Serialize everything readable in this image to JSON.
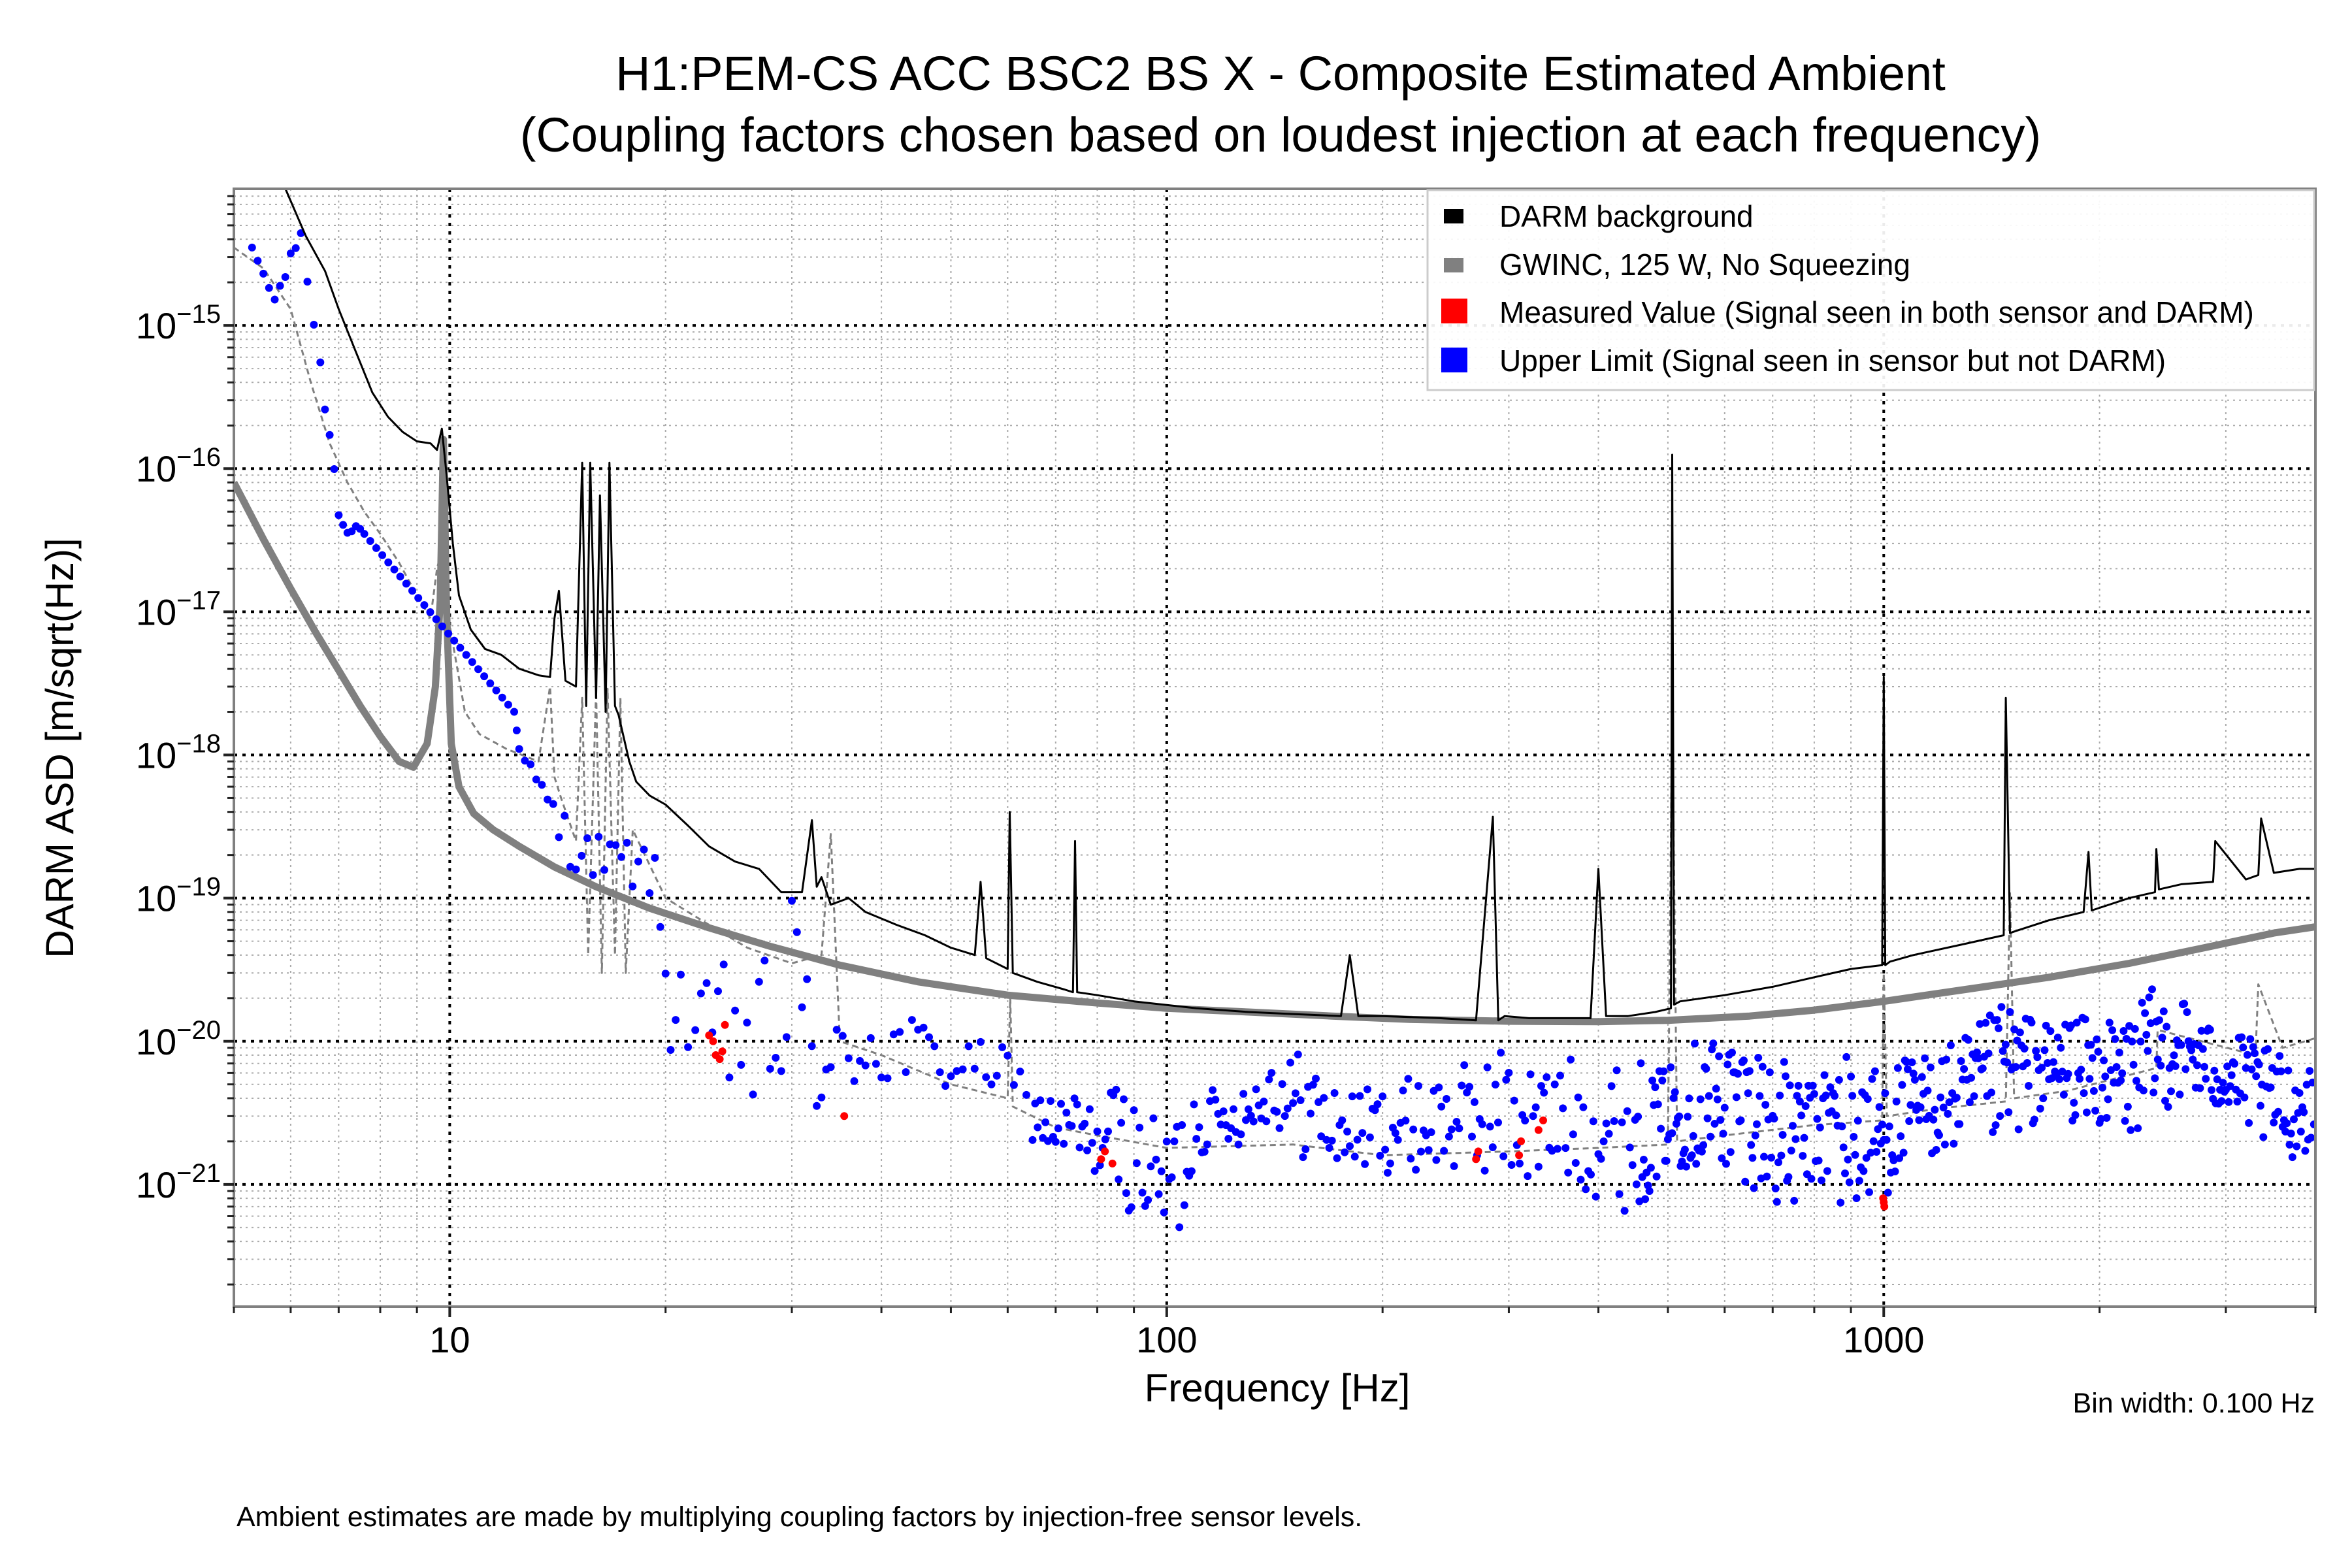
{
  "chart_data": {
    "type": "line",
    "title": "H1:PEM-CS ACC BSC2 BS X - Composite Estimated Ambient",
    "subtitle": "(Coupling factors chosen based on loudest injection at each frequency)",
    "xlabel": "Frequency [Hz]",
    "ylabel": "DARM ASD [m/sqrt(Hz)]",
    "xscale": "log",
    "yscale": "log",
    "xlim": [
      5.0,
      4000
    ],
    "ylim": [
      1.4e-22,
      9e-15
    ],
    "grid": true,
    "x_ticks": [
      {
        "value": 10,
        "label": "10"
      },
      {
        "value": 100,
        "label": "100"
      },
      {
        "value": 1000,
        "label": "1000"
      }
    ],
    "y_ticks": [
      {
        "value": 1e-15,
        "base": "10",
        "exp": "−15"
      },
      {
        "value": 1e-16,
        "base": "10",
        "exp": "−16"
      },
      {
        "value": 1e-17,
        "base": "10",
        "exp": "−17"
      },
      {
        "value": 1e-18,
        "base": "10",
        "exp": "−18"
      },
      {
        "value": 1e-19,
        "base": "10",
        "exp": "−19"
      },
      {
        "value": 1e-20,
        "base": "10",
        "exp": "−20"
      },
      {
        "value": 1e-21,
        "base": "10",
        "exp": "−21"
      }
    ],
    "legend_position": "top-right",
    "legend": [
      {
        "label": "DARM background",
        "color": "#000000",
        "kind": "line"
      },
      {
        "label": "GWINC, 125 W, No Squeezing",
        "color": "#808080",
        "kind": "line"
      },
      {
        "label": "Measured Value (Signal seen in both sensor and DARM)",
        "color": "#ff0000",
        "kind": "patch"
      },
      {
        "label": "Upper Limit (Signal seen in sensor but not DARM)",
        "color": "#0000ff",
        "kind": "patch"
      }
    ],
    "series": [
      {
        "name": "DARM background",
        "style": "line",
        "color": "#000000",
        "x": [
          5.9,
          6.3,
          6.7,
          7.0,
          7.4,
          7.8,
          8.2,
          8.6,
          9.0,
          9.4,
          9.6,
          9.75,
          9.9,
          10.1,
          10.3,
          10.7,
          11.2,
          11.8,
          12.5,
          13.3,
          13.8,
          14.0,
          14.2,
          14.5,
          15.0,
          15.3,
          15.5,
          15.7,
          16.0,
          16.2,
          16.5,
          16.7,
          17.0,
          17.2,
          17.5,
          17.8,
          18.2,
          19.0,
          20.0,
          21.5,
          23.0,
          25.0,
          27.0,
          29.0,
          31.0,
          32.0,
          32.5,
          33.0,
          34.0,
          36.0,
          38.0,
          42.0,
          46.0,
          50.0,
          54.0,
          55.0,
          56.0,
          60.0,
          60.4,
          61.0,
          66.0,
          72.0,
          74.0,
          74.5,
          75.0,
          80.0,
          90.0,
          110.0,
          130.0,
          150.0,
          175.0,
          180.0,
          185.0,
          200.0,
          240.0,
          270.0,
          285.0,
          290.0,
          296.0,
          320.0,
          390.0,
          400.0,
          410.0,
          440.0,
          480.0,
          505.0,
          507.0,
          510.0,
          520.0,
          600.0,
          700.0,
          800.0,
          900.0,
          995.0,
          1000.0,
          1005.0,
          1020.0,
          1100.0,
          1300.0,
          1470.0,
          1480.0,
          1500.0,
          1530.0,
          1700.0,
          1900.0,
          1930.0,
          1950.0,
          2200.0,
          2390.0,
          2400.0,
          2420.0,
          2600.0,
          2880.0,
          2900.0,
          3200.0,
          3330.0,
          3360.0,
          3500.0,
          3800.0,
          4000.0
        ],
        "y": [
          9e-15,
          4.2e-15,
          2.4e-15,
          1.3e-15,
          6.5e-16,
          3.4e-16,
          2.3e-16,
          1.8e-16,
          1.55e-16,
          1.5e-16,
          1.35e-16,
          1.9e-16,
          9e-17,
          3e-17,
          1.3e-17,
          7.5e-18,
          5.5e-18,
          5e-18,
          4e-18,
          3.6e-18,
          3.5e-18,
          9e-18,
          1.4e-17,
          3.3e-18,
          3e-18,
          1.1e-16,
          2.2e-18,
          1.1e-16,
          2.5e-18,
          6.5e-17,
          2e-18,
          1.1e-16,
          2.2e-18,
          1.9e-18,
          1.3e-18,
          9e-19,
          6.5e-19,
          5.2e-19,
          4.5e-19,
          3.2e-19,
          2.3e-19,
          1.8e-19,
          1.6e-19,
          1.1e-19,
          1.1e-19,
          3.5e-19,
          1.2e-19,
          1.4e-19,
          9e-20,
          1e-19,
          8e-20,
          6.5e-20,
          5.5e-20,
          4.5e-20,
          4e-20,
          1.3e-19,
          3.8e-20,
          3.2e-20,
          4e-19,
          3e-20,
          2.6e-20,
          2.3e-20,
          2.2e-20,
          2.5e-19,
          2.2e-20,
          2.1e-20,
          1.9e-20,
          1.7e-20,
          1.6e-20,
          1.55e-20,
          1.5e-20,
          4e-20,
          1.5e-20,
          1.5e-20,
          1.45e-20,
          1.4e-20,
          3.7e-19,
          1.4e-20,
          1.5e-20,
          1.45e-20,
          1.45e-20,
          1.6e-19,
          1.5e-20,
          1.5e-20,
          1.6e-20,
          1.7e-20,
          1.25e-16,
          1.8e-20,
          1.9e-20,
          2.1e-20,
          2.4e-20,
          2.8e-20,
          3.2e-20,
          3.4e-20,
          3.5e-18,
          3.4e-20,
          3.6e-20,
          4e-20,
          4.8e-20,
          5.5e-20,
          2.5e-18,
          5.7e-20,
          5.9e-20,
          7e-20,
          8e-20,
          2.1e-19,
          8.2e-20,
          1e-19,
          1.1e-19,
          2.2e-19,
          1.15e-19,
          1.25e-19,
          1.3e-19,
          2.5e-19,
          1.35e-19,
          1.45e-19,
          3.6e-19,
          1.5e-19,
          1.6e-19,
          1.6e-19
        ]
      },
      {
        "name": "GWINC, 125 W, No Squeezing",
        "style": "thick-line",
        "color": "#808080",
        "x": [
          5.0,
          5.5,
          6.0,
          6.5,
          7.0,
          7.5,
          8.0,
          8.5,
          8.9,
          9.3,
          9.55,
          9.7,
          9.8,
          9.9,
          10.05,
          10.3,
          10.8,
          11.5,
          12.5,
          14.0,
          16.0,
          19.0,
          23.0,
          28.0,
          35.0,
          45.0,
          60.0,
          80.0,
          100.0,
          130.0,
          170.0,
          220.0,
          300.0,
          400.0,
          500.0,
          650.0,
          800.0,
          1000.0,
          1300.0,
          1700.0,
          2200.0,
          2800.0,
          3500.0,
          4000.0
        ],
        "y": [
          8e-17,
          3.2e-17,
          1.45e-17,
          7.2e-18,
          3.9e-18,
          2.2e-18,
          1.35e-18,
          9e-19,
          8.2e-19,
          1.2e-18,
          3e-18,
          1.2e-17,
          1.6e-16,
          1e-17,
          1.2e-18,
          6e-19,
          3.9e-19,
          3e-19,
          2.3e-19,
          1.65e-19,
          1.2e-19,
          8.5e-20,
          6.2e-20,
          4.6e-20,
          3.4e-20,
          2.6e-20,
          2.1e-20,
          1.85e-20,
          1.7e-20,
          1.6e-20,
          1.5e-20,
          1.42e-20,
          1.38e-20,
          1.37e-20,
          1.4e-20,
          1.5e-20,
          1.65e-20,
          1.9e-20,
          2.3e-20,
          2.8e-20,
          3.5e-20,
          4.5e-20,
          5.7e-20,
          6.3e-20
        ]
      },
      {
        "name": "Sensor ambient (dashed gray)",
        "style": "dashed",
        "color": "#808080",
        "x": [
          5.0,
          5.5,
          6.0,
          6.4,
          6.8,
          7.2,
          7.6,
          8.0,
          8.5,
          9.0,
          9.4,
          9.6,
          9.8,
          10.0,
          10.5,
          11.0,
          12.0,
          13.3,
          13.8,
          14.0,
          14.3,
          15.0,
          15.3,
          15.6,
          16.0,
          16.3,
          16.6,
          17.0,
          17.3,
          17.6,
          18.0,
          20.0,
          23.0,
          26.0,
          30.0,
          33.0,
          34.0,
          35.0,
          40.0,
          50.0,
          60.0,
          60.5,
          61.0,
          70.0,
          80.0,
          100.0,
          150.0,
          200.0,
          300.0,
          400.0,
          500.0,
          507.0,
          515.0,
          600.0,
          800.0,
          995.0,
          1000.0,
          1010.0,
          1200.0,
          1480.0,
          1500.0,
          1520.0,
          1800.0,
          2400.0,
          2410.0,
          3300.0,
          3330.0,
          3600.0,
          4000.0
        ],
        "y": [
          3.5e-15,
          2.5e-15,
          1.3e-15,
          4e-16,
          1.5e-16,
          8e-17,
          5e-17,
          3.5e-17,
          2.2e-17,
          1.3e-17,
          9e-18,
          2e-17,
          3e-17,
          8e-18,
          2e-18,
          1.4e-18,
          1.1e-18,
          9e-19,
          3e-18,
          7e-19,
          5e-19,
          2.5e-19,
          2.5e-18,
          4e-20,
          2.8e-18,
          3e-20,
          2.9e-18,
          4e-20,
          2.5e-18,
          3e-20,
          3e-19,
          1e-19,
          6.5e-20,
          4.5e-20,
          3.5e-20,
          4e-20,
          2.8e-19,
          1e-20,
          8e-21,
          5e-21,
          4e-21,
          2e-20,
          3.5e-21,
          2.5e-21,
          2.2e-21,
          1.8e-21,
          1.9e-21,
          1.6e-21,
          1.7e-21,
          1.8e-21,
          1.9e-21,
          2e-18,
          2e-21,
          2.2e-21,
          2.6e-21,
          2.8e-21,
          3e-20,
          3e-21,
          3.4e-21,
          3.8e-21,
          1.1e-19,
          4e-21,
          4.5e-21,
          6.5e-21,
          1.2e-20,
          8e-21,
          2.5e-20,
          9e-21,
          1.05e-20
        ]
      },
      {
        "name": "Measured Value (Signal seen in both sensor and DARM)",
        "style": "scatter",
        "color": "#ff0000",
        "x": [
          23.0,
          23.3,
          23.5,
          23.8,
          24.0,
          24.2,
          35.5,
          81.0,
          82.0,
          84.0,
          270.0,
          272.0,
          310.0,
          312.0,
          330.0,
          335.0,
          998.0,
          1000.0,
          1002.0
        ],
        "y": [
          1.1e-20,
          1e-20,
          8e-21,
          7.5e-21,
          8.5e-21,
          1.3e-20,
          3e-21,
          1.5e-21,
          1.7e-21,
          1.4e-21,
          1.5e-21,
          1.7e-21,
          1.6e-21,
          2e-21,
          2.4e-21,
          2.8e-21,
          8e-22,
          7.5e-22,
          7e-22
        ]
      },
      {
        "name": "Upper Limit (Signal seen in sensor but not DARM)",
        "style": "scatter",
        "color": "#0000ff",
        "envelope": {
          "x": [
            5.3,
            5.7,
            6.0,
            6.2,
            6.6,
            6.8,
            7.0,
            7.2,
            7.4,
            7.6,
            12.3,
            12.5,
            14.2,
            15.0,
            19.0,
            20.0,
            21.0,
            22.0,
            25.0,
            27.0,
            29.0,
            30.0,
            31.0,
            32.0,
            33.0,
            34.0,
            36.0,
            38.0,
            40.0,
            45.0,
            50.0,
            55.0,
            60.0,
            65.0,
            70.0,
            75.0,
            80.0,
            85.0,
            90.0,
            95.0,
            100.0,
            105.0,
            110.0,
            120.0,
            130.0,
            140.0,
            150.0,
            160.0,
            170.0,
            180.0,
            200.0,
            230.0,
            260.0,
            280.0,
            300.0,
            330.0,
            360.0,
            400.0,
            450.0,
            480.0,
            500.0,
            550.0,
            600.0,
            650.0,
            700.0,
            750.0,
            800.0,
            850.0,
            900.0,
            950.0,
            1000.0,
            1100.0,
            1200.0,
            1300.0,
            1400.0,
            1500.0,
            1600.0,
            1700.0,
            1800.0,
            2000.0,
            2200.0,
            2400.0,
            2600.0,
            2800.0,
            3000.0,
            3200.0,
            3400.0,
            3600.0,
            3800.0,
            4000.0
          ],
          "y_high": [
            3.5e-15,
            1.6e-15,
            3.2e-15,
            5e-15,
            6e-16,
            2.2e-16,
            6e-17,
            5e-17,
            4.5e-17,
            3.5e-17,
            2e-18,
            1.1e-18,
            5e-19,
            3e-19,
            2.5e-19,
            1.2e-19,
            5e-20,
            2e-20,
            5e-20,
            3e-20,
            8e-20,
            1.5e-19,
            5e-20,
            2.5e-19,
            1.5e-20,
            1.3e-20,
            2e-20,
            2.5e-20,
            2e-20,
            1.5e-20,
            1.2e-20,
            1e-20,
            9e-21,
            5e-21,
            4e-21,
            5e-21,
            3e-21,
            6e-21,
            4e-21,
            3e-21,
            2.5e-21,
            5e-21,
            6e-21,
            4e-21,
            6e-21,
            8e-21,
            9e-21,
            8e-21,
            5e-21,
            4.5e-21,
            5e-21,
            6e-21,
            7e-21,
            8e-21,
            1e-20,
            7e-21,
            8e-21,
            7e-21,
            8e-21,
            6e-21,
            7e-21,
            1.1e-20,
            1.2e-20,
            1.1e-20,
            9e-21,
            6e-21,
            5e-21,
            1.2e-20,
            8e-21,
            7e-21,
            7e-21,
            8e-21,
            9e-21,
            1.1e-20,
            1.5e-20,
            2e-20,
            1.6e-20,
            1.3e-20,
            1.7e-20,
            1.3e-20,
            1.6e-20,
            2.5e-20,
            2.2e-20,
            1.4e-20,
            1.2e-20,
            1.1e-20,
            9e-21,
            8e-21,
            7e-21,
            6e-21
          ],
          "y_low": [
            3.5e-15,
            1.4e-15,
            2.5e-15,
            4e-15,
            4e-16,
            1.5e-16,
            4e-17,
            3.5e-17,
            3.5e-17,
            3.5e-17,
            2e-18,
            1.1e-18,
            2e-19,
            1.5e-19,
            1e-19,
            8e-21,
            7e-21,
            6e-21,
            3e-21,
            2e-21,
            2.5e-21,
            3e-21,
            2e-21,
            3e-21,
            2e-21,
            1.5e-21,
            3e-21,
            5e-21,
            4e-21,
            5e-21,
            4e-21,
            5e-21,
            3.5e-21,
            2e-21,
            1.5e-21,
            1e-21,
            1.2e-21,
            8e-22,
            6e-22,
            5e-22,
            4e-22,
            3.5e-22,
            1.5e-21,
            2e-21,
            1.8e-21,
            3e-21,
            1.5e-21,
            1.5e-21,
            1.2e-21,
            1.3e-21,
            1.2e-21,
            1.2e-21,
            1.1e-21,
            1.2e-21,
            1e-21,
            9e-22,
            1e-21,
            8e-22,
            6e-22,
            1e-21,
            1.3e-21,
            1.3e-21,
            1.2e-21,
            1e-21,
            7e-22,
            6e-22,
            1.1e-21,
            6e-22,
            6e-22,
            7e-22,
            8e-22,
            1.4e-21,
            1.6e-21,
            1.5e-21,
            1.7e-21,
            2e-21,
            2.5e-21,
            3e-21,
            2.8e-21,
            2.5e-21,
            2e-21,
            3e-21,
            4e-21,
            3.5e-21,
            3e-21,
            2.5e-21,
            1.8e-21,
            1.6e-21,
            1.5e-21,
            2e-21
          ]
        }
      }
    ],
    "annotations": {
      "bin_width": "Bin width: 0.100 Hz",
      "footnote": "Ambient estimates are made by multiplying coupling factors by injection-free sensor levels."
    }
  }
}
